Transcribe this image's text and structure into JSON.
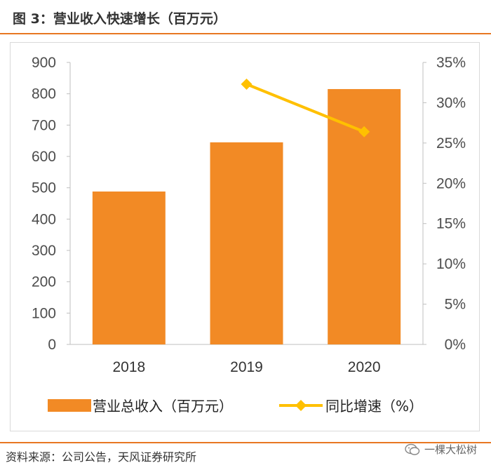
{
  "header": {
    "title": "图 3：营业收入快速增长（百万元）"
  },
  "footer": {
    "source": "资料来源：公司公告，天风证券研究所",
    "watermark": "一棵大松树"
  },
  "colors": {
    "bar": "#f28a25",
    "line": "#ffc000",
    "accent": "#e87722"
  },
  "chart_data": {
    "type": "bar",
    "title": "营业收入快速增长（百万元）",
    "categories": [
      "2018",
      "2019",
      "2020"
    ],
    "series": [
      {
        "name": "营业总收入（百万元）",
        "kind": "bar",
        "axis": "left",
        "values": [
          488,
          645,
          815
        ]
      },
      {
        "name": "同比增速（%）",
        "kind": "line",
        "axis": "right",
        "values": [
          null,
          32.3,
          26.4
        ]
      }
    ],
    "y_left": {
      "lim": [
        0,
        900
      ],
      "ticks": [
        "0",
        "100",
        "200",
        "300",
        "400",
        "500",
        "600",
        "700",
        "800",
        "900"
      ]
    },
    "y_right": {
      "lim": [
        0,
        35
      ],
      "ticks": [
        "0%",
        "5%",
        "10%",
        "15%",
        "20%",
        "25%",
        "30%",
        "35%"
      ]
    },
    "legend": [
      "营业总收入（百万元）",
      "同比增速（%）"
    ],
    "grid": false,
    "legend_position": "bottom"
  }
}
